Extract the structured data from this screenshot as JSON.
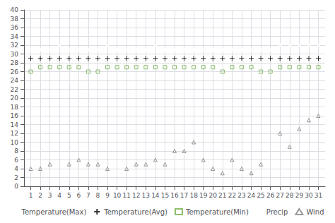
{
  "chart_data": {
    "type": "scatter",
    "x": [
      1,
      2,
      3,
      4,
      5,
      6,
      7,
      8,
      9,
      10,
      11,
      12,
      13,
      14,
      15,
      16,
      17,
      18,
      19,
      20,
      21,
      22,
      23,
      24,
      25,
      26,
      27,
      28,
      29,
      30,
      31
    ],
    "series": [
      {
        "name": "Temperature(Max)",
        "color": "#4472c4",
        "marker": "circle",
        "values": [
          31,
          31,
          31,
          32,
          31,
          31,
          31,
          31,
          32,
          31,
          31,
          31,
          31,
          32,
          31,
          31,
          31,
          31,
          31,
          31,
          31,
          31,
          31,
          31,
          31,
          31,
          32,
          32,
          32,
          32,
          32
        ]
      },
      {
        "name": "Temperature(Avg)",
        "color": "#000000",
        "marker": "plus",
        "values": [
          29,
          29,
          29,
          29,
          29,
          29,
          29,
          29,
          29,
          29,
          29,
          29,
          29,
          29,
          29,
          29,
          29,
          29,
          29,
          29,
          29,
          29,
          29,
          29,
          29,
          29,
          29,
          29,
          29,
          29,
          29
        ]
      },
      {
        "name": "Temperature(Min)",
        "color": "#70ad47",
        "marker": "square",
        "values": [
          26,
          27,
          27,
          27,
          27,
          27,
          26,
          26,
          27,
          27,
          27,
          27,
          27,
          27,
          27,
          27,
          27,
          27,
          27,
          27,
          26,
          27,
          27,
          27,
          26,
          26,
          27,
          27,
          27,
          27,
          27
        ]
      },
      {
        "name": "Precip",
        "color": "#ed7d31",
        "marker": "circle",
        "values": [
          null,
          null,
          null,
          null,
          null,
          null,
          null,
          null,
          null,
          null,
          null,
          null,
          null,
          null,
          null,
          null,
          null,
          null,
          null,
          null,
          null,
          null,
          null,
          null,
          null,
          null,
          null,
          null,
          null,
          null,
          null
        ]
      },
      {
        "name": "Wind",
        "color": "#808080",
        "marker": "triangle",
        "values": [
          4,
          4,
          5,
          null,
          5,
          6,
          5,
          5,
          4,
          null,
          4,
          5,
          5,
          6,
          5,
          8,
          8,
          10,
          6,
          4,
          3,
          6,
          4,
          3,
          5,
          null,
          12,
          9,
          13,
          15,
          16
        ]
      }
    ],
    "xlim": [
      0.3,
      31.7
    ],
    "xticks": [
      1,
      2,
      3,
      4,
      5,
      6,
      7,
      8,
      9,
      10,
      11,
      12,
      13,
      14,
      15,
      16,
      17,
      18,
      19,
      20,
      21,
      22,
      23,
      24,
      25,
      26,
      27,
      28,
      29,
      30,
      31
    ],
    "ylim": [
      0,
      40
    ],
    "yticks": [
      0,
      2,
      4,
      6,
      8,
      10,
      12,
      14,
      16,
      18,
      20,
      22,
      24,
      26,
      28,
      30,
      32,
      34,
      36,
      38,
      40
    ],
    "grid": true,
    "legend": "bottom"
  }
}
